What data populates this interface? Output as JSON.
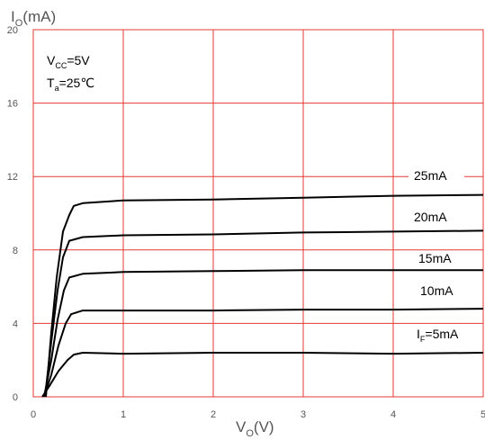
{
  "chart_data": {
    "type": "line",
    "title": "",
    "xlabel": {
      "main": "V",
      "sub": "O",
      "unit": "(V)"
    },
    "ylabel": {
      "main": "I",
      "sub": "O",
      "unit": "(mA)"
    },
    "xlim": [
      0,
      5
    ],
    "ylim": [
      0,
      20
    ],
    "x_ticks": [
      "0",
      "1",
      "2",
      "3",
      "4",
      "5"
    ],
    "y_ticks": [
      "0",
      "4",
      "8",
      "12",
      "16",
      "20"
    ],
    "x_tick_values": [
      0,
      1,
      2,
      3,
      4,
      5
    ],
    "y_tick_values": [
      0,
      4,
      8,
      12,
      16,
      20
    ],
    "grid": true,
    "grid_color": "#e53935",
    "line_color": "#000000",
    "conditions": [
      {
        "main": "V",
        "sub": "CC",
        "rest": "=5V"
      },
      {
        "main": "T",
        "sub": "a",
        "rest": "=25℃"
      }
    ],
    "series": [
      {
        "label": {
          "main": "I",
          "sub": "F",
          "rest": "=5mA"
        },
        "points": [
          [
            0.1,
            0
          ],
          [
            0.18,
            0.6
          ],
          [
            0.28,
            1.4
          ],
          [
            0.38,
            2.0
          ],
          [
            0.45,
            2.3
          ],
          [
            0.55,
            2.4
          ],
          [
            1,
            2.35
          ],
          [
            2,
            2.4
          ],
          [
            3,
            2.4
          ],
          [
            4,
            2.35
          ],
          [
            5,
            2.4
          ]
        ]
      },
      {
        "label": {
          "main": "",
          "sub": "",
          "rest": "10mA"
        },
        "points": [
          [
            0.12,
            0
          ],
          [
            0.2,
            1.2
          ],
          [
            0.28,
            2.8
          ],
          [
            0.36,
            4.0
          ],
          [
            0.42,
            4.5
          ],
          [
            0.55,
            4.7
          ],
          [
            1,
            4.7
          ],
          [
            2,
            4.7
          ],
          [
            3,
            4.75
          ],
          [
            4,
            4.75
          ],
          [
            5,
            4.8
          ]
        ]
      },
      {
        "label": {
          "main": "",
          "sub": "",
          "rest": "15mA"
        },
        "points": [
          [
            0.12,
            0
          ],
          [
            0.2,
            2.0
          ],
          [
            0.27,
            4.2
          ],
          [
            0.34,
            5.8
          ],
          [
            0.4,
            6.5
          ],
          [
            0.55,
            6.7
          ],
          [
            1,
            6.8
          ],
          [
            2,
            6.85
          ],
          [
            3,
            6.9
          ],
          [
            4,
            6.9
          ],
          [
            5,
            6.9
          ]
        ]
      },
      {
        "label": {
          "main": "",
          "sub": "",
          "rest": "20mA"
        },
        "points": [
          [
            0.13,
            0
          ],
          [
            0.2,
            3.0
          ],
          [
            0.27,
            5.8
          ],
          [
            0.33,
            7.6
          ],
          [
            0.4,
            8.5
          ],
          [
            0.55,
            8.7
          ],
          [
            1,
            8.8
          ],
          [
            2,
            8.85
          ],
          [
            3,
            8.95
          ],
          [
            4,
            9.0
          ],
          [
            5,
            9.05
          ]
        ]
      },
      {
        "label": {
          "main": "",
          "sub": "",
          "rest": "25mA"
        },
        "points": [
          [
            0.14,
            0
          ],
          [
            0.2,
            3.5
          ],
          [
            0.26,
            6.5
          ],
          [
            0.33,
            9.0
          ],
          [
            0.4,
            9.9
          ],
          [
            0.45,
            10.4
          ],
          [
            0.55,
            10.55
          ],
          [
            1,
            10.7
          ],
          [
            2,
            10.75
          ],
          [
            3,
            10.85
          ],
          [
            4,
            10.95
          ],
          [
            5,
            11.0
          ]
        ]
      }
    ]
  }
}
